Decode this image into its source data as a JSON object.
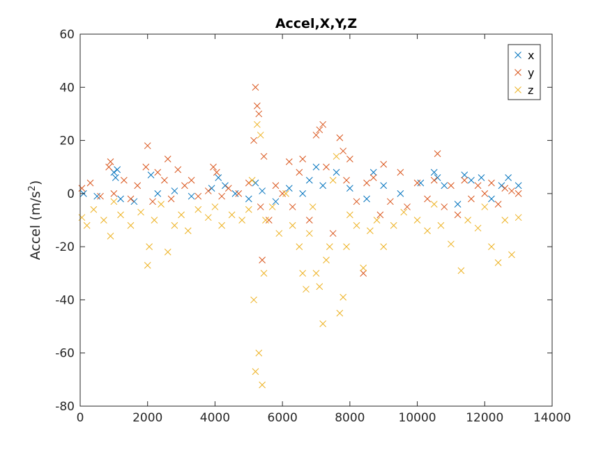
{
  "chart_data": {
    "type": "scatter",
    "title": "Accel,X,Y,Z",
    "ylabel_main": "Accel (m/s",
    "ylabel_sup": "2",
    "ylabel_tail": ")",
    "xlim": [
      0,
      14000
    ],
    "ylim": [
      -80,
      60
    ],
    "xticks": [
      0,
      2000,
      4000,
      6000,
      8000,
      10000,
      12000,
      14000
    ],
    "yticks": [
      -80,
      -60,
      -40,
      -20,
      0,
      20,
      40,
      60
    ],
    "xtick_labels": [
      "0",
      "2000",
      "4000",
      "6000",
      "8000",
      "10000",
      "12000",
      "14000"
    ],
    "ytick_labels": [
      "-80",
      "-60",
      "-40",
      "-20",
      "0",
      "20",
      "40",
      "60"
    ],
    "marker": "x",
    "grid": false,
    "legend_position": "top-right",
    "series": [
      {
        "name": "x",
        "color": "#0072BD",
        "points": [
          [
            100,
            0
          ],
          [
            500,
            -1
          ],
          [
            1000,
            8
          ],
          [
            1050,
            6
          ],
          [
            1100,
            9
          ],
          [
            1200,
            -2
          ],
          [
            1600,
            -3
          ],
          [
            2100,
            7
          ],
          [
            2300,
            0
          ],
          [
            2800,
            1
          ],
          [
            3300,
            -1
          ],
          [
            3900,
            2
          ],
          [
            4100,
            6
          ],
          [
            4300,
            3
          ],
          [
            4600,
            0
          ],
          [
            5000,
            -2
          ],
          [
            5200,
            4
          ],
          [
            5400,
            1
          ],
          [
            5800,
            -3
          ],
          [
            6200,
            2
          ],
          [
            6600,
            0
          ],
          [
            6800,
            5
          ],
          [
            7000,
            10
          ],
          [
            7200,
            3
          ],
          [
            7600,
            8
          ],
          [
            8000,
            2
          ],
          [
            8500,
            -2
          ],
          [
            8700,
            8
          ],
          [
            9000,
            3
          ],
          [
            9500,
            0
          ],
          [
            10100,
            4
          ],
          [
            10500,
            8
          ],
          [
            10600,
            6
          ],
          [
            10800,
            3
          ],
          [
            11200,
            -4
          ],
          [
            11400,
            7
          ],
          [
            11600,
            5
          ],
          [
            11900,
            6
          ],
          [
            12200,
            -2
          ],
          [
            12500,
            3
          ],
          [
            12700,
            6
          ],
          [
            13000,
            3
          ]
        ]
      },
      {
        "name": "y",
        "color": "#D95319",
        "points": [
          [
            50,
            2
          ],
          [
            300,
            4
          ],
          [
            600,
            -1
          ],
          [
            850,
            10
          ],
          [
            900,
            12
          ],
          [
            1000,
            0
          ],
          [
            1300,
            5
          ],
          [
            1500,
            -2
          ],
          [
            1700,
            3
          ],
          [
            1950,
            10
          ],
          [
            2000,
            18
          ],
          [
            2150,
            -3
          ],
          [
            2300,
            8
          ],
          [
            2500,
            5
          ],
          [
            2600,
            13
          ],
          [
            2700,
            -2
          ],
          [
            2900,
            9
          ],
          [
            3100,
            3
          ],
          [
            3300,
            5
          ],
          [
            3500,
            -1
          ],
          [
            3800,
            1
          ],
          [
            3950,
            10
          ],
          [
            4050,
            8
          ],
          [
            4200,
            -1
          ],
          [
            4400,
            2
          ],
          [
            4700,
            0
          ],
          [
            5000,
            4
          ],
          [
            5150,
            20
          ],
          [
            5200,
            40
          ],
          [
            5250,
            33
          ],
          [
            5300,
            30
          ],
          [
            5350,
            -5
          ],
          [
            5400,
            -25
          ],
          [
            5450,
            14
          ],
          [
            5600,
            -10
          ],
          [
            5800,
            3
          ],
          [
            6000,
            0
          ],
          [
            6200,
            12
          ],
          [
            6300,
            -5
          ],
          [
            6500,
            8
          ],
          [
            6600,
            13
          ],
          [
            6800,
            -10
          ],
          [
            7000,
            22
          ],
          [
            7100,
            24
          ],
          [
            7200,
            26
          ],
          [
            7300,
            10
          ],
          [
            7500,
            -15
          ],
          [
            7700,
            21
          ],
          [
            7800,
            16
          ],
          [
            7900,
            5
          ],
          [
            8000,
            13
          ],
          [
            8200,
            -3
          ],
          [
            8400,
            -30
          ],
          [
            8500,
            4
          ],
          [
            8700,
            6
          ],
          [
            8900,
            -8
          ],
          [
            9000,
            11
          ],
          [
            9200,
            -3
          ],
          [
            9500,
            8
          ],
          [
            9700,
            -5
          ],
          [
            10000,
            4
          ],
          [
            10300,
            -2
          ],
          [
            10500,
            5
          ],
          [
            10600,
            15
          ],
          [
            10800,
            -5
          ],
          [
            11000,
            3
          ],
          [
            11200,
            -8
          ],
          [
            11400,
            5
          ],
          [
            11600,
            -2
          ],
          [
            11800,
            3
          ],
          [
            12000,
            0
          ],
          [
            12200,
            4
          ],
          [
            12400,
            -4
          ],
          [
            12600,
            2
          ],
          [
            12800,
            1
          ],
          [
            13000,
            0
          ]
        ]
      },
      {
        "name": "z",
        "color": "#EDB120",
        "points": [
          [
            50,
            -9
          ],
          [
            200,
            -12
          ],
          [
            400,
            -6
          ],
          [
            700,
            -10
          ],
          [
            900,
            -16
          ],
          [
            1000,
            -3
          ],
          [
            1200,
            -8
          ],
          [
            1500,
            -12
          ],
          [
            1800,
            -7
          ],
          [
            2000,
            -27
          ],
          [
            2050,
            -20
          ],
          [
            2200,
            -10
          ],
          [
            2400,
            -4
          ],
          [
            2600,
            -22
          ],
          [
            2800,
            -12
          ],
          [
            3000,
            -8
          ],
          [
            3200,
            -14
          ],
          [
            3500,
            -6
          ],
          [
            3800,
            -9
          ],
          [
            4000,
            -5
          ],
          [
            4200,
            -12
          ],
          [
            4500,
            -8
          ],
          [
            4800,
            -10
          ],
          [
            5000,
            -6
          ],
          [
            5100,
            5
          ],
          [
            5150,
            -40
          ],
          [
            5200,
            -67
          ],
          [
            5250,
            26
          ],
          [
            5300,
            -60
          ],
          [
            5350,
            22
          ],
          [
            5400,
            -72
          ],
          [
            5450,
            -30
          ],
          [
            5500,
            -10
          ],
          [
            5700,
            -5
          ],
          [
            5900,
            -15
          ],
          [
            6100,
            0
          ],
          [
            6300,
            -12
          ],
          [
            6500,
            -20
          ],
          [
            6600,
            -30
          ],
          [
            6700,
            -36
          ],
          [
            6800,
            -15
          ],
          [
            6900,
            -5
          ],
          [
            7000,
            -30
          ],
          [
            7100,
            -35
          ],
          [
            7200,
            -49
          ],
          [
            7300,
            -25
          ],
          [
            7400,
            -20
          ],
          [
            7500,
            5
          ],
          [
            7600,
            14
          ],
          [
            7700,
            -45
          ],
          [
            7800,
            -39
          ],
          [
            7900,
            -20
          ],
          [
            8000,
            -8
          ],
          [
            8200,
            -12
          ],
          [
            8400,
            -28
          ],
          [
            8600,
            -14
          ],
          [
            8800,
            -10
          ],
          [
            9000,
            -20
          ],
          [
            9300,
            -12
          ],
          [
            9600,
            -7
          ],
          [
            10000,
            -10
          ],
          [
            10300,
            -14
          ],
          [
            10500,
            -4
          ],
          [
            10700,
            -12
          ],
          [
            11000,
            -19
          ],
          [
            11300,
            -29
          ],
          [
            11500,
            -10
          ],
          [
            11800,
            -13
          ],
          [
            12000,
            -5
          ],
          [
            12200,
            -20
          ],
          [
            12400,
            -26
          ],
          [
            12600,
            -10
          ],
          [
            12800,
            -23
          ],
          [
            13000,
            -9
          ]
        ]
      }
    ]
  }
}
